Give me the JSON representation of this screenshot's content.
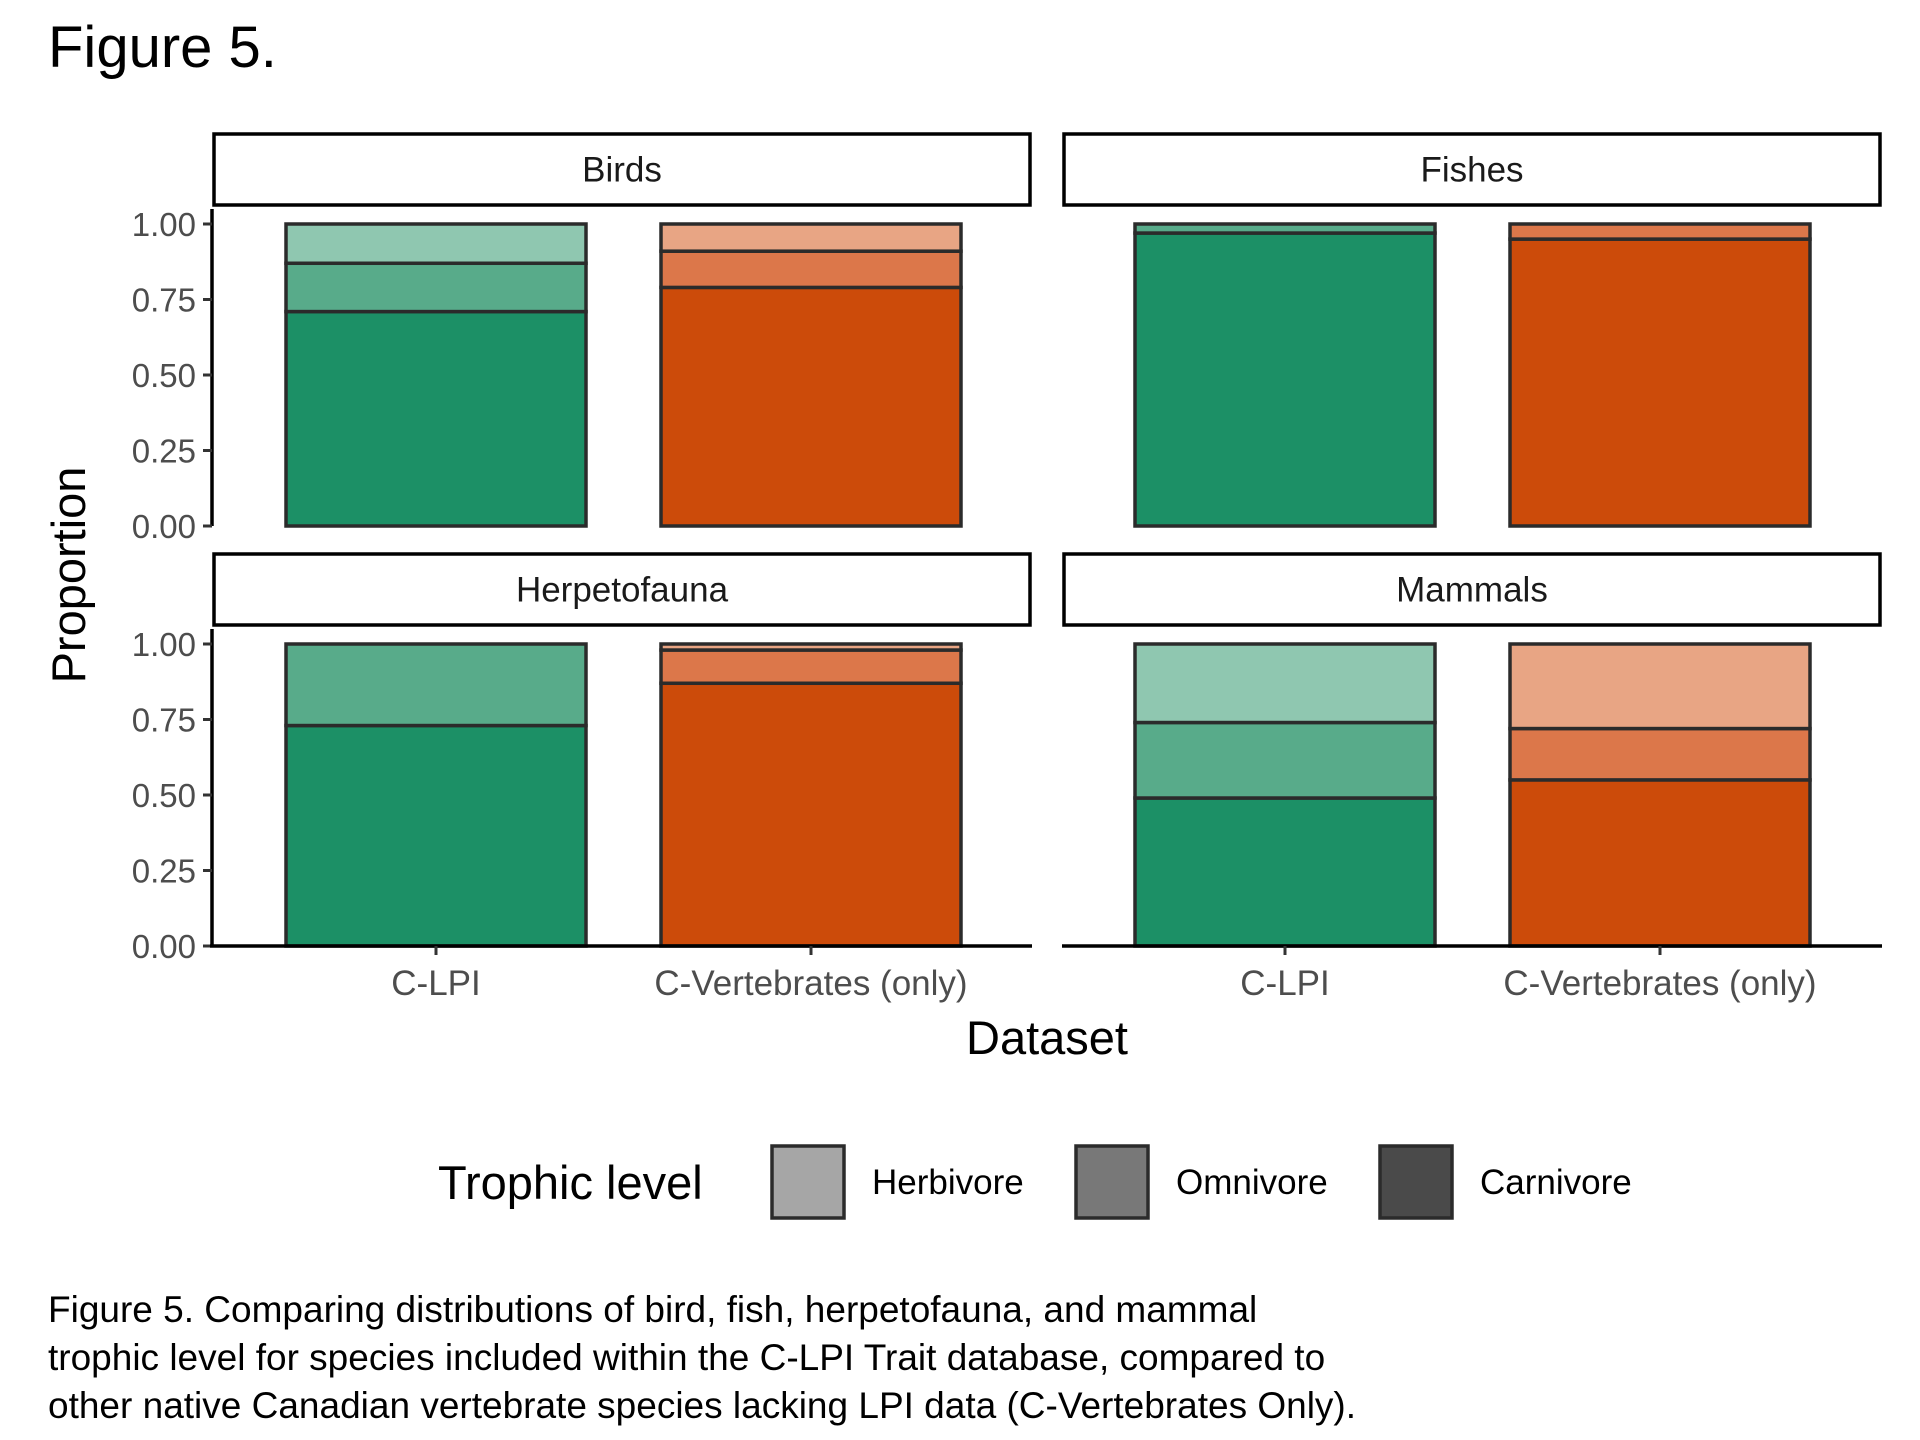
{
  "figure_title": "Figure 5.",
  "caption_lines": [
    "Figure 5. Comparing distributions of bird, fish, herpetofauna, and mammal",
    "trophic level for species included within the C-LPI Trait database, compared to",
    "other native Canadian vertebrate species lacking LPI data (C-Vertebrates Only)."
  ],
  "chart_data": {
    "type": "bar",
    "stacked": true,
    "faceted": true,
    "xlabel": "Dataset",
    "ylabel": "Proportion",
    "ylim": [
      0,
      1
    ],
    "yticks": [
      "0.00",
      "0.25",
      "0.50",
      "0.75",
      "1.00"
    ],
    "categories": [
      "C-LPI",
      "C-Vertebrates (only)"
    ],
    "legend": {
      "title": "Trophic level",
      "position": "bottom",
      "entries": [
        {
          "name": "Herbivore",
          "swatch": "#a6a6a6"
        },
        {
          "name": "Omnivore",
          "swatch": "#787878"
        },
        {
          "name": "Carnivore",
          "swatch": "#4a4a4a"
        }
      ]
    },
    "colors": {
      "C-LPI": {
        "Carnivore": "#1c9066",
        "Omnivore": "#58ab8a",
        "Herbivore": "#8fc7b0"
      },
      "C-Vertebrates (only)": {
        "Carnivore": "#cc4b0a",
        "Omnivore": "#dc774a",
        "Herbivore": "#e8a584"
      }
    },
    "stack_order": [
      "Carnivore",
      "Omnivore",
      "Herbivore"
    ],
    "panels": [
      {
        "name": "Birds",
        "bars": [
          {
            "category": "C-LPI",
            "Carnivore": 0.71,
            "Omnivore": 0.16,
            "Herbivore": 0.13
          },
          {
            "category": "C-Vertebrates (only)",
            "Carnivore": 0.79,
            "Omnivore": 0.12,
            "Herbivore": 0.09
          }
        ]
      },
      {
        "name": "Fishes",
        "bars": [
          {
            "category": "C-LPI",
            "Carnivore": 0.97,
            "Omnivore": 0.03,
            "Herbivore": 0.0
          },
          {
            "category": "C-Vertebrates (only)",
            "Carnivore": 0.95,
            "Omnivore": 0.05,
            "Herbivore": 0.0
          }
        ]
      },
      {
        "name": "Herpetofauna",
        "bars": [
          {
            "category": "C-LPI",
            "Carnivore": 0.73,
            "Omnivore": 0.27,
            "Herbivore": 0.0
          },
          {
            "category": "C-Vertebrates (only)",
            "Carnivore": 0.87,
            "Omnivore": 0.11,
            "Herbivore": 0.02
          }
        ]
      },
      {
        "name": "Mammals",
        "bars": [
          {
            "category": "C-LPI",
            "Carnivore": 0.49,
            "Omnivore": 0.25,
            "Herbivore": 0.26
          },
          {
            "category": "C-Vertebrates (only)",
            "Carnivore": 0.55,
            "Omnivore": 0.17,
            "Herbivore": 0.28
          }
        ]
      }
    ]
  }
}
